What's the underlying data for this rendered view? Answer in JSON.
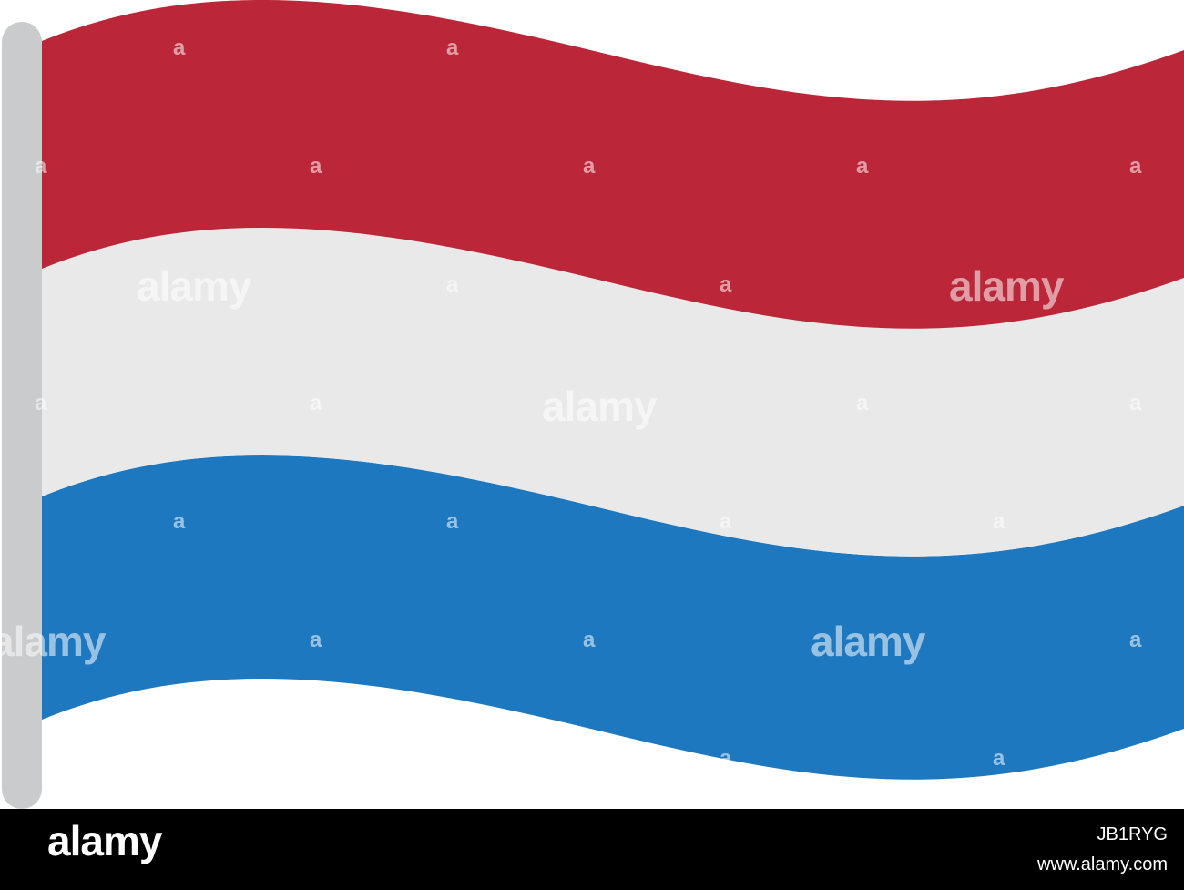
{
  "flag": {
    "subject": "waving tricolour flag on pole",
    "stripe_colors": {
      "top": "#bb2739",
      "middle": "#e9e9e9",
      "bottom": "#1d78bf"
    },
    "pole_color": "#c9cbcc"
  },
  "watermark": {
    "text": "alamy",
    "color": "#ffffff"
  },
  "footer": {
    "background": "#000000",
    "logo_text": "alamy",
    "image_code": "JB1RYG",
    "site_url": "www.alamy.com"
  }
}
